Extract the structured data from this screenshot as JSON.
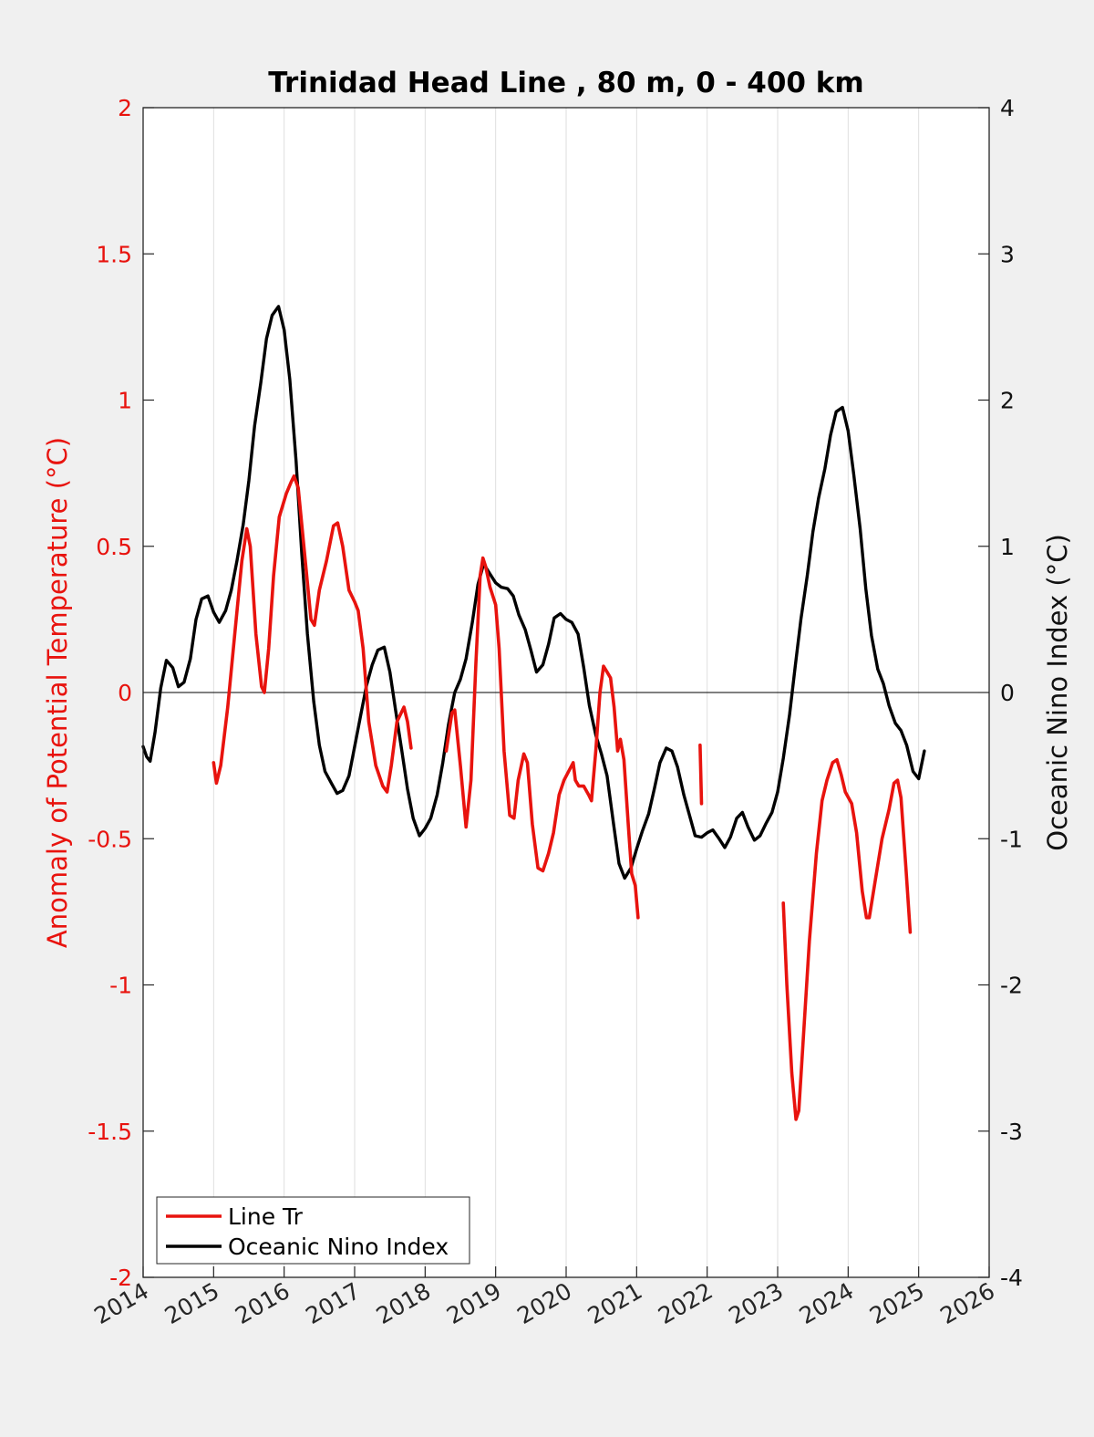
{
  "chart_data": {
    "type": "line",
    "title": "Trinidad Head Line , 80 m, 0 - 400 km",
    "xlim": [
      2014,
      2026
    ],
    "x_ticks": [
      "2014",
      "2015",
      "2016",
      "2017",
      "2018",
      "2019",
      "2020",
      "2021",
      "2022",
      "2023",
      "2024",
      "2025",
      "2026"
    ],
    "ylabel_left": "Anomaly of Potential Temperature (°C)",
    "ylabel_right": "Oceanic Nino Index (°C)",
    "ylim_left": [
      -2,
      2
    ],
    "ylim_right": [
      -4,
      4
    ],
    "y_ticks_left": [
      "-2",
      "-1.5",
      "-1",
      "-0.5",
      "0",
      "0.5",
      "1",
      "1.5",
      "2"
    ],
    "y_ticks_right": [
      "-4",
      "-3",
      "-2",
      "-1",
      "0",
      "1",
      "2",
      "3",
      "4"
    ],
    "grid": "vertical",
    "zero_line": true,
    "legend": {
      "position": "bottom-left",
      "entries": [
        "Line Tr",
        "Oceanic Nino Index"
      ]
    },
    "colors": {
      "line_tr": "#e8130e",
      "oni": "#000000"
    },
    "series": [
      {
        "name": "Line Tr",
        "axis": "left",
        "segments": [
          [
            [
              2015.0,
              -0.24
            ],
            [
              2015.04,
              -0.31
            ],
            [
              2015.1,
              -0.25
            ],
            [
              2015.2,
              -0.05
            ],
            [
              2015.3,
              0.2
            ],
            [
              2015.4,
              0.45
            ],
            [
              2015.47,
              0.56
            ],
            [
              2015.52,
              0.5
            ],
            [
              2015.6,
              0.2
            ],
            [
              2015.68,
              0.02
            ],
            [
              2015.72,
              0.0
            ],
            [
              2015.78,
              0.15
            ],
            [
              2015.85,
              0.4
            ],
            [
              2015.93,
              0.6
            ],
            [
              2016.03,
              0.68
            ],
            [
              2016.1,
              0.72
            ],
            [
              2016.14,
              0.74
            ],
            [
              2016.2,
              0.7
            ],
            [
              2016.3,
              0.45
            ],
            [
              2016.38,
              0.25
            ],
            [
              2016.43,
              0.23
            ],
            [
              2016.5,
              0.35
            ],
            [
              2016.6,
              0.45
            ],
            [
              2016.7,
              0.57
            ],
            [
              2016.76,
              0.58
            ],
            [
              2016.83,
              0.5
            ],
            [
              2016.92,
              0.35
            ],
            [
              2017.0,
              0.31
            ],
            [
              2017.05,
              0.28
            ],
            [
              2017.12,
              0.15
            ],
            [
              2017.2,
              -0.1
            ],
            [
              2017.3,
              -0.25
            ],
            [
              2017.4,
              -0.32
            ],
            [
              2017.46,
              -0.34
            ],
            [
              2017.52,
              -0.25
            ],
            [
              2017.6,
              -0.1
            ],
            [
              2017.7,
              -0.05
            ],
            [
              2017.75,
              -0.1
            ],
            [
              2017.8,
              -0.19
            ]
          ],
          [
            [
              2018.3,
              -0.2
            ],
            [
              2018.38,
              -0.07
            ],
            [
              2018.42,
              -0.06
            ],
            [
              2018.5,
              -0.25
            ],
            [
              2018.58,
              -0.46
            ],
            [
              2018.65,
              -0.3
            ],
            [
              2018.72,
              0.1
            ],
            [
              2018.78,
              0.4
            ],
            [
              2018.82,
              0.46
            ],
            [
              2018.86,
              0.43
            ],
            [
              2018.92,
              0.36
            ],
            [
              2019.0,
              0.3
            ],
            [
              2019.05,
              0.15
            ],
            [
              2019.12,
              -0.2
            ],
            [
              2019.2,
              -0.42
            ],
            [
              2019.26,
              -0.43
            ],
            [
              2019.32,
              -0.3
            ],
            [
              2019.4,
              -0.21
            ],
            [
              2019.45,
              -0.24
            ],
            [
              2019.52,
              -0.45
            ],
            [
              2019.6,
              -0.6
            ],
            [
              2019.67,
              -0.61
            ],
            [
              2019.75,
              -0.55
            ],
            [
              2019.82,
              -0.48
            ],
            [
              2019.9,
              -0.35
            ],
            [
              2019.97,
              -0.3
            ],
            [
              2020.1,
              -0.24
            ],
            [
              2020.13,
              -0.3
            ],
            [
              2020.18,
              -0.32
            ],
            [
              2020.25,
              -0.32
            ],
            [
              2020.32,
              -0.35
            ],
            [
              2020.36,
              -0.37
            ],
            [
              2020.42,
              -0.2
            ],
            [
              2020.48,
              0.0
            ],
            [
              2020.53,
              0.09
            ],
            [
              2020.58,
              0.07
            ],
            [
              2020.63,
              0.05
            ],
            [
              2020.68,
              -0.05
            ],
            [
              2020.73,
              -0.2
            ],
            [
              2020.77,
              -0.16
            ],
            [
              2020.82,
              -0.23
            ],
            [
              2020.88,
              -0.45
            ],
            [
              2020.93,
              -0.62
            ],
            [
              2020.98,
              -0.66
            ],
            [
              2021.02,
              -0.77
            ]
          ],
          [
            [
              2021.9,
              -0.18
            ],
            [
              2021.92,
              -0.38
            ]
          ],
          [
            [
              2023.08,
              -0.72
            ],
            [
              2023.13,
              -1.0
            ],
            [
              2023.2,
              -1.3
            ],
            [
              2023.26,
              -1.46
            ],
            [
              2023.3,
              -1.43
            ],
            [
              2023.36,
              -1.2
            ],
            [
              2023.45,
              -0.85
            ],
            [
              2023.55,
              -0.55
            ],
            [
              2023.63,
              -0.37
            ],
            [
              2023.7,
              -0.3
            ],
            [
              2023.78,
              -0.24
            ],
            [
              2023.84,
              -0.23
            ],
            [
              2023.9,
              -0.28
            ],
            [
              2023.96,
              -0.34
            ],
            [
              2024.05,
              -0.38
            ],
            [
              2024.12,
              -0.48
            ],
            [
              2024.2,
              -0.68
            ],
            [
              2024.26,
              -0.77
            ],
            [
              2024.3,
              -0.77
            ],
            [
              2024.38,
              -0.65
            ],
            [
              2024.48,
              -0.5
            ],
            [
              2024.58,
              -0.4
            ],
            [
              2024.65,
              -0.31
            ],
            [
              2024.7,
              -0.3
            ],
            [
              2024.75,
              -0.36
            ],
            [
              2024.82,
              -0.6
            ],
            [
              2024.88,
              -0.82
            ]
          ]
        ]
      },
      {
        "name": "Oceanic Nino Index",
        "axis": "right",
        "values": [
          [
            2014.0,
            -0.37
          ],
          [
            2014.05,
            -0.44
          ],
          [
            2014.1,
            -0.47
          ],
          [
            2014.17,
            -0.27
          ],
          [
            2014.25,
            0.03
          ],
          [
            2014.33,
            0.22
          ],
          [
            2014.42,
            0.17
          ],
          [
            2014.5,
            0.04
          ],
          [
            2014.58,
            0.07
          ],
          [
            2014.67,
            0.23
          ],
          [
            2014.75,
            0.5
          ],
          [
            2014.83,
            0.64
          ],
          [
            2014.92,
            0.66
          ],
          [
            2015.0,
            0.55
          ],
          [
            2015.08,
            0.48
          ],
          [
            2015.17,
            0.56
          ],
          [
            2015.25,
            0.7
          ],
          [
            2015.33,
            0.9
          ],
          [
            2015.42,
            1.15
          ],
          [
            2015.5,
            1.45
          ],
          [
            2015.58,
            1.82
          ],
          [
            2015.67,
            2.12
          ],
          [
            2015.75,
            2.42
          ],
          [
            2015.83,
            2.58
          ],
          [
            2015.92,
            2.64
          ],
          [
            2016.0,
            2.48
          ],
          [
            2016.08,
            2.14
          ],
          [
            2016.17,
            1.58
          ],
          [
            2016.25,
            0.95
          ],
          [
            2016.33,
            0.4
          ],
          [
            2016.42,
            -0.06
          ],
          [
            2016.5,
            -0.36
          ],
          [
            2016.58,
            -0.54
          ],
          [
            2016.67,
            -0.62
          ],
          [
            2016.75,
            -0.69
          ],
          [
            2016.83,
            -0.67
          ],
          [
            2016.92,
            -0.57
          ],
          [
            2017.0,
            -0.37
          ],
          [
            2017.08,
            -0.17
          ],
          [
            2017.17,
            0.05
          ],
          [
            2017.25,
            0.19
          ],
          [
            2017.33,
            0.29
          ],
          [
            2017.42,
            0.31
          ],
          [
            2017.5,
            0.14
          ],
          [
            2017.58,
            -0.12
          ],
          [
            2017.67,
            -0.4
          ],
          [
            2017.75,
            -0.66
          ],
          [
            2017.83,
            -0.86
          ],
          [
            2017.92,
            -0.98
          ],
          [
            2018.0,
            -0.93
          ],
          [
            2018.08,
            -0.86
          ],
          [
            2018.17,
            -0.7
          ],
          [
            2018.25,
            -0.48
          ],
          [
            2018.33,
            -0.22
          ],
          [
            2018.42,
            0.0
          ],
          [
            2018.5,
            0.09
          ],
          [
            2018.58,
            0.23
          ],
          [
            2018.67,
            0.48
          ],
          [
            2018.75,
            0.74
          ],
          [
            2018.83,
            0.88
          ],
          [
            2018.92,
            0.81
          ],
          [
            2019.0,
            0.75
          ],
          [
            2019.08,
            0.72
          ],
          [
            2019.17,
            0.71
          ],
          [
            2019.25,
            0.66
          ],
          [
            2019.33,
            0.53
          ],
          [
            2019.42,
            0.43
          ],
          [
            2019.5,
            0.29
          ],
          [
            2019.58,
            0.14
          ],
          [
            2019.67,
            0.19
          ],
          [
            2019.75,
            0.33
          ],
          [
            2019.83,
            0.51
          ],
          [
            2019.92,
            0.54
          ],
          [
            2020.0,
            0.5
          ],
          [
            2020.08,
            0.48
          ],
          [
            2020.17,
            0.4
          ],
          [
            2020.25,
            0.17
          ],
          [
            2020.33,
            -0.09
          ],
          [
            2020.42,
            -0.29
          ],
          [
            2020.5,
            -0.42
          ],
          [
            2020.58,
            -0.57
          ],
          [
            2020.67,
            -0.89
          ],
          [
            2020.75,
            -1.17
          ],
          [
            2020.83,
            -1.27
          ],
          [
            2020.92,
            -1.2
          ],
          [
            2021.0,
            -1.07
          ],
          [
            2021.08,
            -0.95
          ],
          [
            2021.17,
            -0.83
          ],
          [
            2021.25,
            -0.66
          ],
          [
            2021.33,
            -0.48
          ],
          [
            2021.42,
            -0.38
          ],
          [
            2021.5,
            -0.4
          ],
          [
            2021.58,
            -0.51
          ],
          [
            2021.67,
            -0.7
          ],
          [
            2021.75,
            -0.84
          ],
          [
            2021.83,
            -0.98
          ],
          [
            2021.92,
            -0.99
          ],
          [
            2022.0,
            -0.96
          ],
          [
            2022.08,
            -0.94
          ],
          [
            2022.17,
            -1.0
          ],
          [
            2022.25,
            -1.06
          ],
          [
            2022.33,
            -0.99
          ],
          [
            2022.42,
            -0.86
          ],
          [
            2022.5,
            -0.82
          ],
          [
            2022.58,
            -0.92
          ],
          [
            2022.67,
            -1.01
          ],
          [
            2022.75,
            -0.98
          ],
          [
            2022.83,
            -0.9
          ],
          [
            2022.92,
            -0.82
          ],
          [
            2023.0,
            -0.68
          ],
          [
            2023.08,
            -0.45
          ],
          [
            2023.17,
            -0.15
          ],
          [
            2023.25,
            0.18
          ],
          [
            2023.33,
            0.5
          ],
          [
            2023.42,
            0.8
          ],
          [
            2023.5,
            1.1
          ],
          [
            2023.58,
            1.33
          ],
          [
            2023.67,
            1.53
          ],
          [
            2023.75,
            1.76
          ],
          [
            2023.83,
            1.92
          ],
          [
            2023.92,
            1.95
          ],
          [
            2024.0,
            1.79
          ],
          [
            2024.08,
            1.49
          ],
          [
            2024.17,
            1.12
          ],
          [
            2024.25,
            0.71
          ],
          [
            2024.33,
            0.39
          ],
          [
            2024.42,
            0.16
          ],
          [
            2024.5,
            0.06
          ],
          [
            2024.58,
            -0.09
          ],
          [
            2024.67,
            -0.21
          ],
          [
            2024.75,
            -0.26
          ],
          [
            2024.83,
            -0.36
          ],
          [
            2024.92,
            -0.54
          ],
          [
            2025.0,
            -0.59
          ],
          [
            2025.08,
            -0.4
          ]
        ]
      }
    ]
  }
}
